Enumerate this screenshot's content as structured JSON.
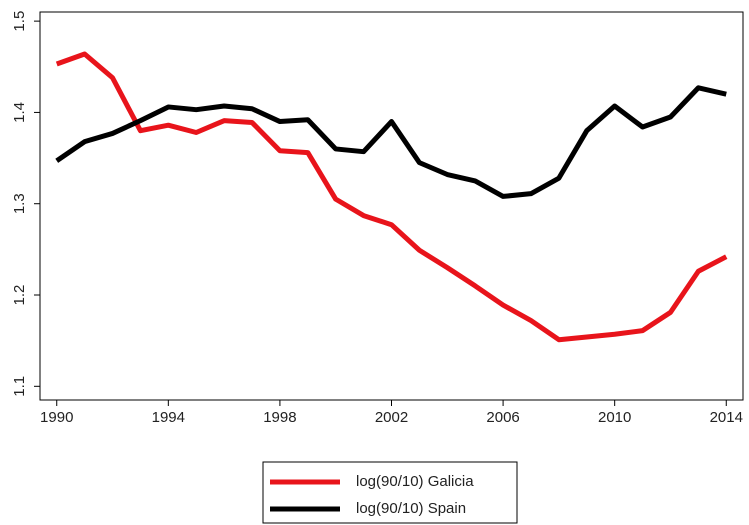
{
  "chart_data": {
    "type": "line",
    "x": [
      1990,
      1991,
      1992,
      1993,
      1994,
      1995,
      1996,
      1997,
      1998,
      1999,
      2000,
      2001,
      2002,
      2003,
      2004,
      2005,
      2006,
      2007,
      2008,
      2009,
      2010,
      2011,
      2012,
      2013,
      2014
    ],
    "series": [
      {
        "name": "log(90/10) Galicia",
        "color": "#e8141b",
        "values": [
          1.453,
          1.464,
          1.438,
          1.38,
          1.386,
          1.378,
          1.391,
          1.389,
          1.358,
          1.356,
          1.305,
          1.287,
          1.277,
          1.249,
          1.23,
          1.21,
          1.189,
          1.172,
          1.151,
          1.154,
          1.157,
          1.161,
          1.181,
          1.226,
          1.242
        ]
      },
      {
        "name": "log(90/10) Spain",
        "color": "#000000",
        "values": [
          1.347,
          1.368,
          1.377,
          1.391,
          1.406,
          1.403,
          1.407,
          1.404,
          1.39,
          1.392,
          1.36,
          1.357,
          1.39,
          1.345,
          1.332,
          1.325,
          1.308,
          1.311,
          1.328,
          1.38,
          1.407,
          1.384,
          1.395,
          1.427,
          1.42
        ]
      }
    ],
    "xlim": [
      1989.4,
      2014.6
    ],
    "xticks": [
      1990,
      1994,
      1998,
      2002,
      2006,
      2010,
      2014
    ],
    "ylim": [
      1.085,
      1.51
    ],
    "yticks": [
      1.1,
      1.2,
      1.3,
      1.4,
      1.5
    ],
    "legend": "bottom"
  }
}
